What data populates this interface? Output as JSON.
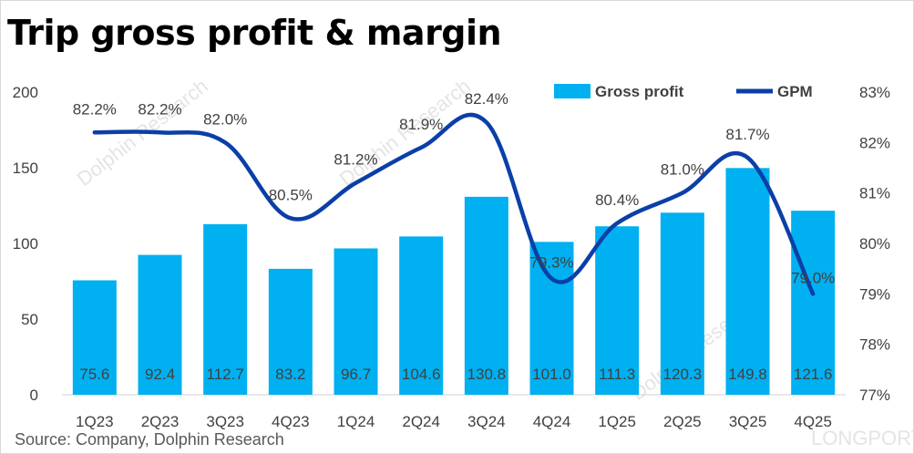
{
  "chart_data": {
    "type": "bar",
    "title": "Trip gross profit & margin",
    "categories": [
      "1Q23",
      "2Q23",
      "3Q23",
      "4Q23",
      "1Q24",
      "2Q24",
      "3Q24",
      "4Q24",
      "1Q25",
      "2Q25",
      "3Q25",
      "4Q25"
    ],
    "series": [
      {
        "name": "Gross profit",
        "type": "bar",
        "axis": "left",
        "color": "#00b0f0",
        "values": [
          75.6,
          92.4,
          112.7,
          83.2,
          96.7,
          104.6,
          130.8,
          101.0,
          111.3,
          120.3,
          149.8,
          121.6
        ],
        "labels": [
          "75.6",
          "92.4",
          "112.7",
          "83.2",
          "96.7",
          "104.6",
          "130.8",
          "101.0",
          "111.3",
          "120.3",
          "149.8",
          "121.6"
        ]
      },
      {
        "name": "GPM",
        "type": "line",
        "axis": "right",
        "color": "#0b3fa8",
        "values": [
          82.2,
          82.2,
          82.0,
          80.5,
          81.2,
          81.9,
          82.4,
          79.3,
          80.4,
          81.0,
          81.7,
          79.0
        ],
        "labels": [
          "82.2%",
          "82.2%",
          "82.0%",
          "80.5%",
          "81.2%",
          "81.9%",
          "82.4%",
          "79.3%",
          "80.4%",
          "81.0%",
          "81.7%",
          "79.0%"
        ]
      }
    ],
    "y_left": {
      "min": 0,
      "max": 200,
      "ticks": [
        "0",
        "50",
        "100",
        "150",
        "200"
      ]
    },
    "y_right": {
      "min": 77,
      "max": 83,
      "ticks": [
        "77%",
        "78%",
        "79%",
        "80%",
        "81%",
        "82%",
        "83%"
      ]
    },
    "legend_position": "top-right",
    "grid": false
  },
  "source": "Source: Company, Dolphin Research",
  "watermarks": [
    "Dolphin Research",
    "Dolphin Research",
    "Dolphin Research",
    "LONGPORT"
  ]
}
